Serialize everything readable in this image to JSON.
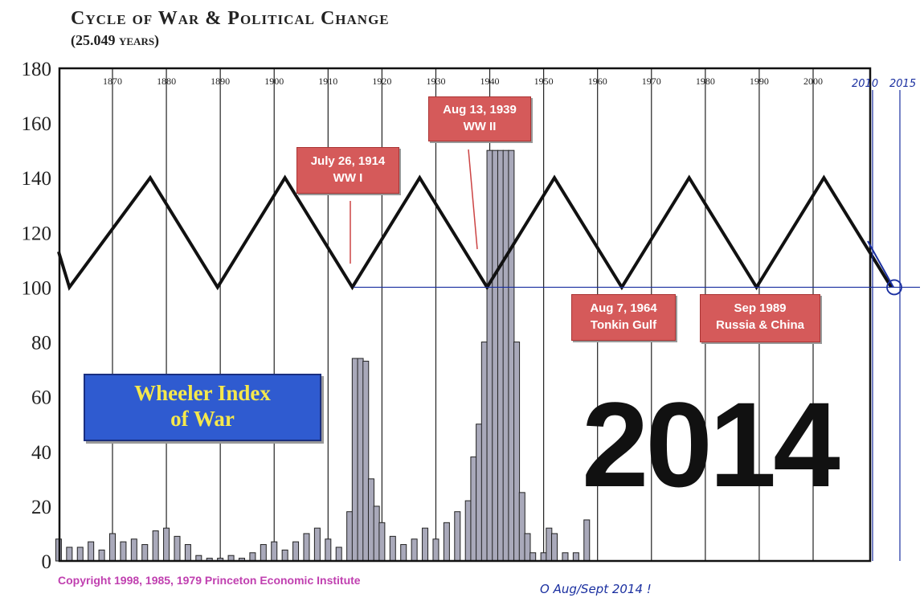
{
  "chart_data": {
    "type": "line",
    "title": "Cycle of War & Political Change",
    "subtitle": "(25.049 years)",
    "ylim": [
      0,
      180
    ],
    "xlim": [
      1860,
      2015
    ],
    "y_ticks": [
      0,
      20,
      40,
      60,
      80,
      100,
      120,
      140,
      160,
      180
    ],
    "x_ticks": [
      "1870",
      "1880",
      "1890",
      "1900",
      "1910",
      "1920",
      "1930",
      "1940",
      "1950",
      "1960",
      "1970",
      "1980",
      "1990",
      "2000"
    ],
    "grid": true,
    "series": [
      {
        "type": "line",
        "x": [
          1860,
          1862,
          1877,
          1889.5,
          1902,
          1914.5,
          1927,
          1939.5,
          1952,
          1964.5,
          1977,
          1989.5,
          2002,
          2014.5
        ],
        "y": [
          113,
          100,
          140,
          100,
          140,
          100,
          140,
          100,
          140,
          100,
          140,
          100,
          140,
          100
        ]
      },
      {
        "type": "bar",
        "x": [
          1860,
          1862,
          1864,
          1866,
          1868,
          1870,
          1872,
          1874,
          1876,
          1878,
          1880,
          1882,
          1884,
          1886,
          1888,
          1890,
          1892,
          1894,
          1896,
          1898,
          1900,
          1902,
          1904,
          1906,
          1908,
          1910,
          1912,
          1914,
          1915,
          1916,
          1917,
          1918,
          1919,
          1920,
          1922,
          1924,
          1926,
          1928,
          1930,
          1932,
          1934,
          1936,
          1937,
          1938,
          1939,
          1940,
          1941,
          1942,
          1943,
          1944,
          1945,
          1946,
          1947,
          1948,
          1950,
          1951,
          1952,
          1954,
          1956,
          1958
        ],
        "values": [
          8,
          5,
          5,
          7,
          4,
          10,
          7,
          8,
          6,
          11,
          12,
          9,
          6,
          2,
          1,
          1,
          2,
          1,
          3,
          6,
          7,
          4,
          7,
          10,
          12,
          8,
          5,
          18,
          74,
          74,
          73,
          30,
          20,
          14,
          9,
          6,
          8,
          12,
          8,
          14,
          18,
          22,
          38,
          50,
          80,
          150,
          150,
          150,
          150,
          150,
          80,
          25,
          10,
          3,
          3,
          12,
          10,
          3,
          3,
          15
        ]
      }
    ],
    "legend": "Wheeler Index of War"
  },
  "title": "Cycle of War & Political Change",
  "subtitle": "(25.049 years)",
  "index_box": {
    "line1": "Wheeler Index",
    "line2": "of War"
  },
  "callouts": [
    {
      "line1": "July 26, 1914",
      "line2": "WW I"
    },
    {
      "line1": "Aug 13, 1939",
      "line2": "WW II"
    },
    {
      "line1": "Aug 7, 1964",
      "line2": "Tonkin Gulf"
    },
    {
      "line1": "Sep 1989",
      "line2": "Russia & China"
    }
  ],
  "big_year": "2014",
  "copyright": "Copyright 1998, 1985, 1979 Princeton Economic Institute",
  "annotations": {
    "x_2010": "2010",
    "x_2015": "2015",
    "note": "O Aug/Sept 2014 !"
  },
  "colors": {
    "bars": "#a9a9ba",
    "cycle_line": "#111111",
    "callout_bg": "#d55a5a",
    "index_box_bg": "#2f5bd0",
    "index_box_text": "#f5e84c",
    "copyright": "#c040b0",
    "handwriting": "#1a2fa0"
  }
}
